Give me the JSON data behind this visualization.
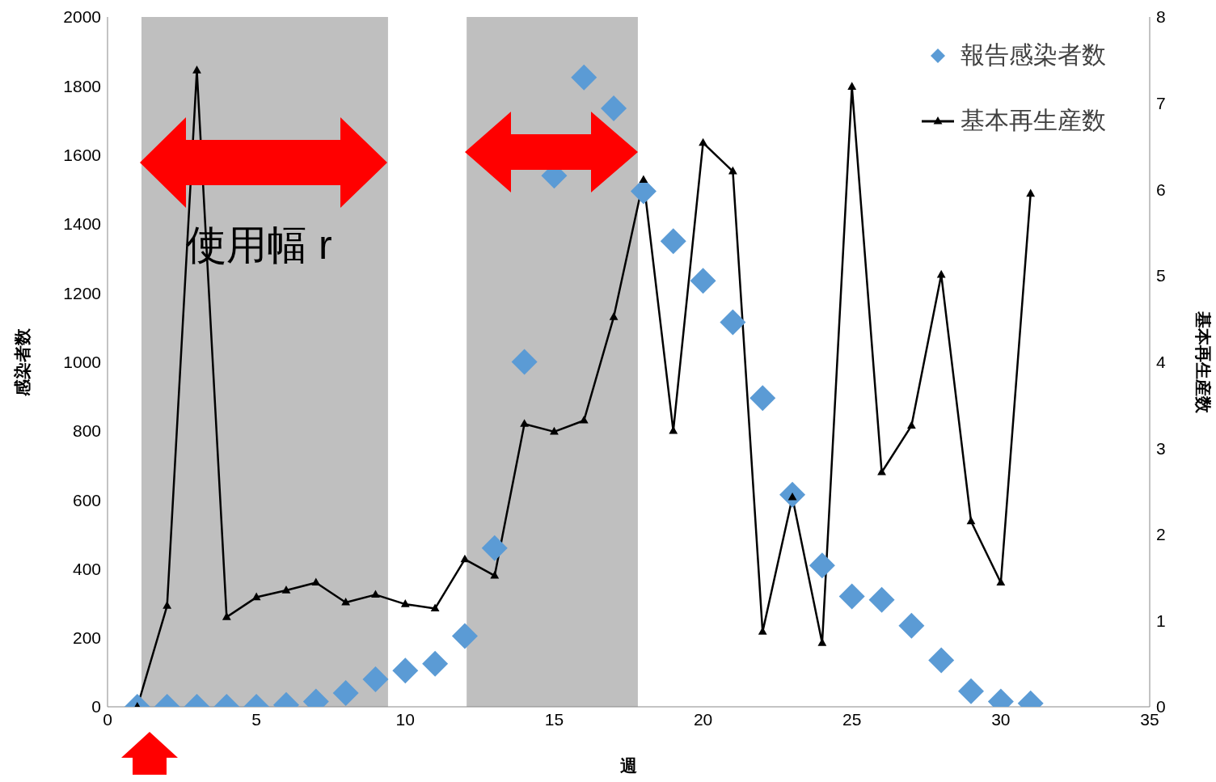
{
  "chart_data": {
    "type": "scatter",
    "xlabel": "週",
    "ylabel": "感染者数",
    "y2label": "基本再生産数",
    "x": [
      1,
      2,
      3,
      4,
      5,
      6,
      7,
      8,
      9,
      10,
      11,
      12,
      13,
      14,
      15,
      16,
      17,
      18,
      19,
      20,
      21,
      22,
      23,
      24,
      25,
      26,
      27,
      28,
      29,
      30,
      31
    ],
    "series": [
      {
        "name": "報告感染者数",
        "color": "#5b9bd5",
        "marker": "diamond",
        "values": [
          0,
          0,
          0,
          0,
          0,
          5,
          15,
          40,
          80,
          105,
          125,
          205,
          460,
          1000,
          1540,
          1825,
          1735,
          1495,
          1350,
          1235,
          1115,
          895,
          615,
          410,
          320,
          310,
          235,
          135,
          45,
          15,
          10
        ]
      },
      {
        "name": "基本再生産数",
        "type": "line",
        "axis": "y2",
        "color": "#000000",
        "marker": "triangle",
        "line_style": "solid",
        "values": [
          0,
          1.17,
          7.38,
          1.04,
          1.27,
          1.35,
          1.44,
          1.21,
          1.3,
          1.19,
          1.14,
          1.71,
          1.52,
          3.28,
          3.19,
          3.32,
          4.52,
          6.11,
          3.2,
          6.54,
          6.21,
          0.87,
          2.43,
          0.74,
          7.19,
          2.72,
          3.26,
          5.01,
          2.15,
          1.44,
          5.95
        ]
      }
    ],
    "xlim": [
      0,
      35
    ],
    "xticks": [
      0,
      5,
      10,
      15,
      20,
      25,
      30,
      35
    ],
    "ylim": [
      0,
      2000
    ],
    "yticks": [
      0,
      200,
      400,
      600,
      800,
      1000,
      1200,
      1400,
      1600,
      1800,
      2000
    ],
    "y2lim": [
      0,
      8
    ],
    "y2ticks": [
      0,
      1,
      2,
      3,
      4,
      5,
      6,
      7,
      8
    ],
    "bands": [
      {
        "axis": "x",
        "from": 1.14,
        "to": 9.42,
        "color": "#808080"
      },
      {
        "axis": "x",
        "from": 12.06,
        "to": 17.81,
        "color": "#808080"
      }
    ],
    "annotations": [
      "使用幅 r"
    ],
    "grid": false,
    "legend": "top right"
  }
}
